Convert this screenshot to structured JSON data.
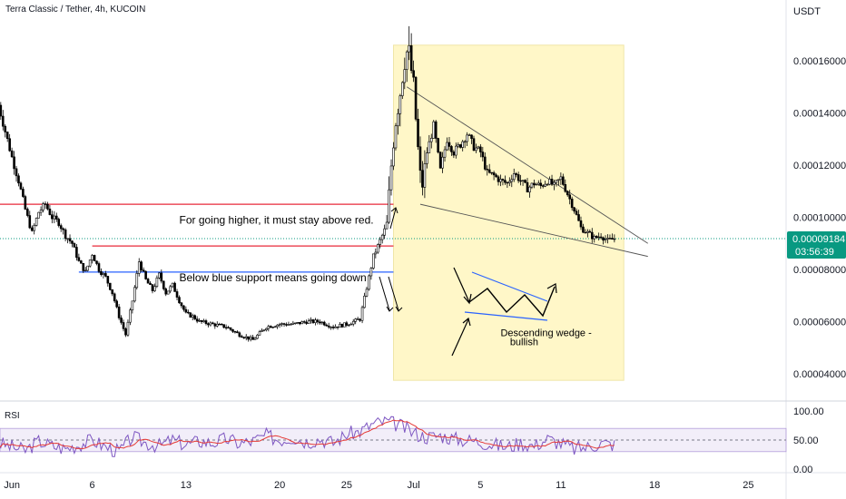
{
  "chart_data": {
    "type": "candlestick",
    "title": "Terra Classic / Tether, 4h, KUCOIN",
    "currency_label": "USDT",
    "price_axis": {
      "ticks": [
        {
          "value": 0.00016,
          "label": "0.00016000"
        },
        {
          "value": 0.00014,
          "label": "0.00014000"
        },
        {
          "value": 0.00012,
          "label": "0.00012000"
        },
        {
          "value": 0.0001,
          "label": "0.00010000"
        },
        {
          "value": 8e-05,
          "label": "0.00008000"
        },
        {
          "value": 6e-05,
          "label": "0.00006000"
        },
        {
          "value": 4e-05,
          "label": "0.00004000"
        }
      ],
      "ylim": [
        3.65e-05,
        0.000175
      ]
    },
    "time_axis": {
      "xlim": [
        -1,
        55
      ],
      "ticks": [
        {
          "day": 0,
          "label": "Jun"
        },
        {
          "day": 6,
          "label": "6"
        },
        {
          "day": 13,
          "label": "13"
        },
        {
          "day": 20,
          "label": "20"
        },
        {
          "day": 25,
          "label": "25"
        },
        {
          "day": 30,
          "label": "Jul"
        },
        {
          "day": 35,
          "label": "5"
        },
        {
          "day": 41,
          "label": "11"
        },
        {
          "day": 48,
          "label": "18"
        },
        {
          "day": 55,
          "label": "25"
        }
      ]
    },
    "last_price": {
      "value": 9.184e-05,
      "label": "0.00009184",
      "countdown": "03:56:39",
      "color": "#089981"
    },
    "price_path": [
      [
        -1,
        0.000143
      ],
      [
        -0.5,
        0.000133
      ],
      [
        0,
        0.000123
      ],
      [
        0.5,
        0.000114
      ],
      [
        1,
        0.000103
      ],
      [
        1.5,
        9.4e-05
      ],
      [
        2,
        0.000102
      ],
      [
        2.5,
        0.000105
      ],
      [
        3,
        0.0001
      ],
      [
        3.5,
        9.8e-05
      ],
      [
        4,
        9.3e-05
      ],
      [
        4.5,
        9e-05
      ],
      [
        5,
        8.3e-05
      ],
      [
        5.5,
        7.9e-05
      ],
      [
        6,
        8.6e-05
      ],
      [
        6.5,
        8e-05
      ],
      [
        7,
        7.7e-05
      ],
      [
        7.5,
        7.1e-05
      ],
      [
        8,
        6.2e-05
      ],
      [
        8.5,
        5.5e-05
      ],
      [
        9,
        6.8e-05
      ],
      [
        9.5,
        8.3e-05
      ],
      [
        10,
        7.6e-05
      ],
      [
        10.5,
        7.2e-05
      ],
      [
        11,
        7.8e-05
      ],
      [
        11.5,
        7.1e-05
      ],
      [
        12,
        7.4e-05
      ],
      [
        12.5,
        6.8e-05
      ],
      [
        13,
        6.3e-05
      ],
      [
        13.5,
        6.2e-05
      ],
      [
        14,
        6e-05
      ],
      [
        15,
        5.9e-05
      ],
      [
        16,
        5.8e-05
      ],
      [
        17,
        5.5e-05
      ],
      [
        18,
        5.3e-05
      ],
      [
        19,
        5.8e-05
      ],
      [
        20,
        5.9e-05
      ],
      [
        21,
        5.9e-05
      ],
      [
        22,
        6e-05
      ],
      [
        23,
        6e-05
      ],
      [
        24,
        5.8e-05
      ],
      [
        25,
        5.9e-05
      ],
      [
        26,
        6.1e-05
      ],
      [
        26.5,
        7.3e-05
      ],
      [
        27,
        8.5e-05
      ],
      [
        27.5,
        9.1e-05
      ],
      [
        28,
        9.7e-05
      ],
      [
        28.3,
        0.000118
      ],
      [
        28.6,
        0.000135
      ],
      [
        29,
        0.000148
      ],
      [
        29.3,
        0.00016
      ],
      [
        29.6,
        0.000165
      ],
      [
        30,
        0.00015
      ],
      [
        30.3,
        0.000128
      ],
      [
        30.6,
        0.00011
      ],
      [
        31,
        0.000125
      ],
      [
        31.5,
        0.000135
      ],
      [
        32,
        0.000118
      ],
      [
        32.5,
        0.00013
      ],
      [
        33,
        0.000125
      ],
      [
        33.5,
        0.000128
      ],
      [
        34,
        0.000132
      ],
      [
        34.5,
        0.000127
      ],
      [
        35,
        0.000125
      ],
      [
        35.5,
        0.000117
      ],
      [
        36,
        0.000116
      ],
      [
        36.5,
        0.000114
      ],
      [
        37,
        0.000113
      ],
      [
        37.5,
        0.000117
      ],
      [
        38,
        0.000114
      ],
      [
        38.5,
        0.000111
      ],
      [
        39,
        0.000113
      ],
      [
        39.5,
        0.000112
      ],
      [
        40,
        0.000114
      ],
      [
        40.5,
        0.000112
      ],
      [
        41,
        0.000115
      ],
      [
        41.5,
        0.000109
      ],
      [
        42,
        0.000103
      ],
      [
        42.5,
        9.6e-05
      ],
      [
        43,
        9.4e-05
      ],
      [
        43.5,
        9.2e-05
      ],
      [
        44,
        9.3e-05
      ],
      [
        44.5,
        9.1e-05
      ],
      [
        45,
        9.184e-05
      ]
    ],
    "horizontal_lines": [
      {
        "name": "red-upper",
        "value": 0.000105,
        "from": -1,
        "to": 28.5,
        "color": "#e8283a"
      },
      {
        "name": "red-lower",
        "value": 8.9e-05,
        "from": 6,
        "to": 28.5,
        "color": "#e8283a"
      },
      {
        "name": "blue-support",
        "value": 7.9e-05,
        "from": 5,
        "to": 28.5,
        "color": "#2962ff"
      }
    ],
    "shaded_zone": {
      "from": 28.5,
      "to": 45.7,
      "top": 0.000166,
      "bottom": 3.75e-05,
      "color": "#fff7c8"
    },
    "wedge_lines": [
      {
        "from": [
          29.5,
          0.00015
        ],
        "to": [
          47.5,
          9e-05
        ]
      },
      {
        "from": [
          30.5,
          0.000105
        ],
        "to": [
          47.5,
          8.5e-05
        ]
      }
    ],
    "annotations": [
      {
        "text": "For going higher, it must stay above red.",
        "day": 12.5,
        "value": 9.75e-05
      },
      {
        "text": "Below blue support means going down",
        "day": 12.5,
        "value": 7.55e-05
      },
      {
        "text": "Descending wedge -",
        "day": 36.5,
        "value": 5.45e-05
      },
      {
        "text": "bullish",
        "day": 37.2,
        "value": 5.1e-05
      }
    ],
    "rsi": {
      "label": "RSI",
      "ticks": [
        {
          "value": 100,
          "label": "100.00"
        },
        {
          "value": 50,
          "label": "50.00"
        },
        {
          "value": 0,
          "label": "0.00"
        }
      ],
      "band": [
        30,
        70
      ],
      "values": [
        [
          -1,
          45
        ],
        [
          0,
          38
        ],
        [
          1,
          32
        ],
        [
          2,
          48
        ],
        [
          3,
          40
        ],
        [
          4,
          35
        ],
        [
          5,
          42
        ],
        [
          6,
          50
        ],
        [
          7,
          38
        ],
        [
          8,
          30
        ],
        [
          9,
          55
        ],
        [
          10,
          45
        ],
        [
          11,
          40
        ],
        [
          12,
          50
        ],
        [
          13,
          42
        ],
        [
          14,
          48
        ],
        [
          15,
          45
        ],
        [
          16,
          52
        ],
        [
          17,
          44
        ],
        [
          18,
          48
        ],
        [
          19,
          58
        ],
        [
          20,
          50
        ],
        [
          21,
          55
        ],
        [
          22,
          47
        ],
        [
          23,
          52
        ],
        [
          24,
          45
        ],
        [
          25,
          60
        ],
        [
          26,
          65
        ],
        [
          27,
          78
        ],
        [
          28,
          82
        ],
        [
          29,
          75
        ],
        [
          30,
          62
        ],
        [
          31,
          55
        ],
        [
          32,
          58
        ],
        [
          33,
          52
        ],
        [
          34,
          50
        ],
        [
          35,
          47
        ],
        [
          36,
          42
        ],
        [
          37,
          38
        ],
        [
          38,
          45
        ],
        [
          39,
          40
        ],
        [
          40,
          52
        ],
        [
          41,
          44
        ],
        [
          42,
          35
        ],
        [
          43,
          38
        ],
        [
          44,
          45
        ],
        [
          45,
          42
        ]
      ]
    }
  }
}
